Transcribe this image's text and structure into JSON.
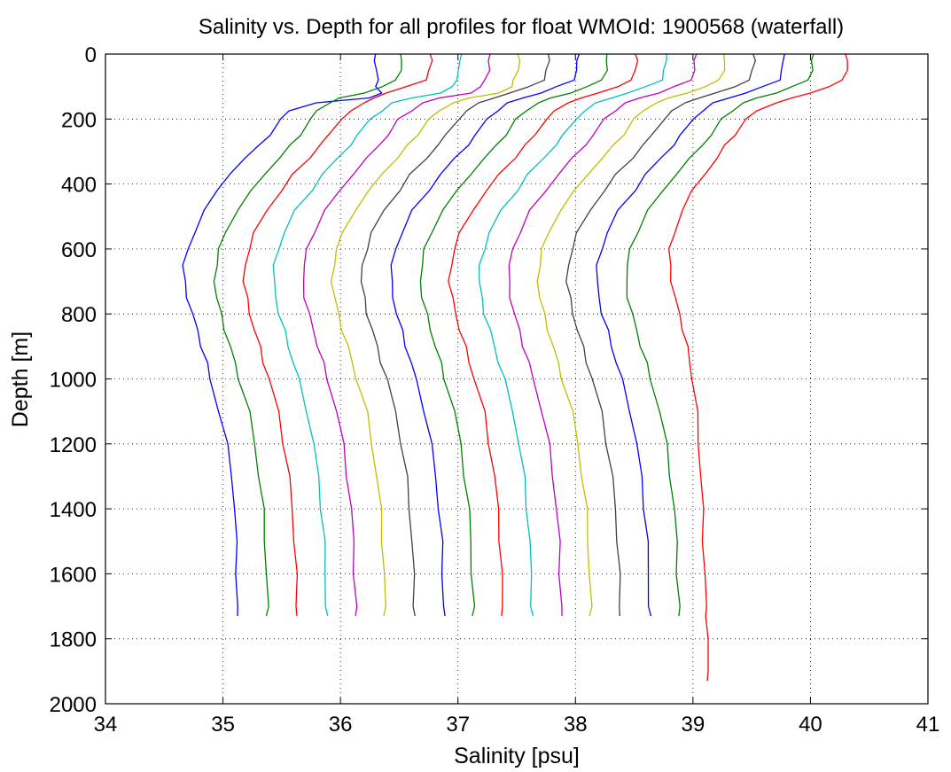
{
  "chart_data": {
    "type": "line",
    "title": "Salinity vs. Depth for all profiles for float WMOId: 1900568 (waterfall)",
    "xlabel": "Salinity [psu]",
    "ylabel": "Depth [m]",
    "xlim": [
      34,
      41
    ],
    "ylim": [
      0,
      2000
    ],
    "y_reversed": true,
    "grid": true,
    "grid_style": "dotted",
    "xticks": [
      34,
      35,
      36,
      37,
      38,
      39,
      40,
      41
    ],
    "yticks": [
      0,
      200,
      400,
      600,
      800,
      1000,
      1200,
      1400,
      1600,
      1800,
      2000
    ],
    "waterfall_offset": 0.25,
    "colors": [
      "#0000ff",
      "#008000",
      "#ff0000",
      "#00bfbf",
      "#bf00bf",
      "#bfbf00",
      "#404040"
    ],
    "depth_levels": [
      0,
      20,
      50,
      80,
      100,
      120,
      135,
      150,
      175,
      200,
      250,
      280,
      320,
      370,
      420,
      480,
      550,
      600,
      650,
      700,
      750,
      800,
      850,
      900,
      950,
      1000,
      1100,
      1200,
      1300,
      1400,
      1500,
      1600,
      1700,
      1730
    ],
    "series": [
      {
        "salinity": [
          36.29,
          36.3,
          36.3,
          36.32,
          36.31,
          36.34,
          36.25,
          35.8,
          35.55,
          35.5,
          35.4,
          35.3,
          35.2,
          35.05,
          34.95,
          34.85,
          34.75,
          34.71,
          34.66,
          34.67,
          34.7,
          34.74,
          34.78,
          34.82,
          34.86,
          34.89,
          34.97,
          35.03,
          35.08,
          35.1,
          35.11,
          35.12,
          35.12,
          35.12
        ]
      },
      {
        "salinity": [
          36.52,
          36.52,
          36.51,
          36.48,
          36.35,
          36.2,
          36.0,
          35.9,
          35.8,
          35.75,
          35.65,
          35.58,
          35.48,
          35.35,
          35.25,
          35.12,
          35.02,
          34.97,
          34.94,
          34.93,
          34.95,
          34.98,
          35.02,
          35.06,
          35.1,
          35.14,
          35.22,
          35.27,
          35.31,
          35.34,
          35.36,
          35.37,
          35.38,
          35.38
        ]
      },
      {
        "salinity": [
          36.77,
          36.77,
          36.76,
          36.73,
          36.55,
          36.4,
          36.28,
          36.2,
          36.1,
          36.0,
          35.9,
          35.83,
          35.73,
          35.6,
          35.5,
          35.37,
          35.27,
          35.22,
          35.19,
          35.18,
          35.2,
          35.23,
          35.27,
          35.31,
          35.35,
          35.39,
          35.47,
          35.52,
          35.56,
          35.59,
          35.61,
          35.62,
          35.63,
          35.63
        ]
      },
      {
        "salinity": [
          37.02,
          37.02,
          37.01,
          36.98,
          36.96,
          36.85,
          36.6,
          36.45,
          36.35,
          36.25,
          36.15,
          36.08,
          35.98,
          35.85,
          35.75,
          35.62,
          35.52,
          35.47,
          35.44,
          35.43,
          35.45,
          35.48,
          35.52,
          35.56,
          35.6,
          35.64,
          35.72,
          35.77,
          35.81,
          35.84,
          35.86,
          35.87,
          35.88,
          35.88
        ]
      },
      {
        "salinity": [
          37.27,
          37.27,
          37.26,
          37.23,
          37.2,
          37.1,
          36.85,
          36.7,
          36.6,
          36.5,
          36.4,
          36.33,
          36.23,
          36.1,
          36.0,
          35.87,
          35.77,
          35.72,
          35.69,
          35.68,
          35.7,
          35.73,
          35.77,
          35.81,
          35.85,
          35.89,
          35.97,
          36.02,
          36.06,
          36.09,
          36.11,
          36.12,
          36.13,
          36.13
        ]
      },
      {
        "salinity": [
          37.52,
          37.52,
          37.51,
          37.48,
          37.45,
          37.35,
          37.1,
          36.95,
          36.85,
          36.75,
          36.65,
          36.58,
          36.48,
          36.35,
          36.25,
          36.12,
          36.02,
          35.97,
          35.94,
          35.93,
          35.95,
          35.98,
          36.02,
          36.06,
          36.1,
          36.14,
          36.22,
          36.27,
          36.31,
          36.34,
          36.36,
          36.37,
          36.38,
          36.38
        ]
      },
      {
        "salinity": [
          37.77,
          37.77,
          37.76,
          37.73,
          37.6,
          37.45,
          37.3,
          37.18,
          37.08,
          37.0,
          36.9,
          36.83,
          36.73,
          36.6,
          36.5,
          36.37,
          36.27,
          36.22,
          36.19,
          36.18,
          36.2,
          36.23,
          36.27,
          36.31,
          36.35,
          36.39,
          36.47,
          36.52,
          36.56,
          36.59,
          36.61,
          36.62,
          36.63,
          36.63
        ]
      },
      {
        "salinity": [
          38.02,
          38.02,
          38.01,
          37.98,
          37.85,
          37.7,
          37.55,
          37.43,
          37.33,
          37.25,
          37.15,
          37.08,
          36.98,
          36.85,
          36.75,
          36.62,
          36.52,
          36.47,
          36.44,
          36.43,
          36.45,
          36.48,
          36.52,
          36.56,
          36.6,
          36.64,
          36.72,
          36.77,
          36.81,
          36.84,
          36.86,
          36.87,
          36.88,
          36.88
        ]
      },
      {
        "salinity": [
          38.27,
          38.27,
          38.26,
          38.23,
          38.1,
          37.95,
          37.8,
          37.68,
          37.58,
          37.5,
          37.4,
          37.33,
          37.23,
          37.1,
          37.0,
          36.87,
          36.77,
          36.72,
          36.69,
          36.68,
          36.7,
          36.73,
          36.77,
          36.81,
          36.85,
          36.89,
          36.97,
          37.02,
          37.06,
          37.09,
          37.11,
          37.12,
          37.13,
          37.13
        ]
      },
      {
        "salinity": [
          38.52,
          38.52,
          38.51,
          38.48,
          38.35,
          38.2,
          38.05,
          37.93,
          37.83,
          37.75,
          37.65,
          37.58,
          37.48,
          37.35,
          37.25,
          37.12,
          37.02,
          36.97,
          36.94,
          36.93,
          36.95,
          36.98,
          37.02,
          37.06,
          37.1,
          37.14,
          37.22,
          37.27,
          37.31,
          37.34,
          37.36,
          37.37,
          37.38,
          37.38
        ]
      },
      {
        "salinity": [
          38.77,
          38.77,
          38.76,
          38.73,
          38.6,
          38.45,
          38.3,
          38.18,
          38.08,
          38.0,
          37.9,
          37.83,
          37.73,
          37.6,
          37.5,
          37.37,
          37.27,
          37.22,
          37.19,
          37.18,
          37.2,
          37.23,
          37.27,
          37.31,
          37.35,
          37.39,
          37.47,
          37.52,
          37.56,
          37.59,
          37.61,
          37.62,
          37.63,
          37.63
        ]
      },
      {
        "salinity": [
          39.02,
          39.02,
          39.01,
          38.98,
          38.85,
          38.7,
          38.55,
          38.43,
          38.33,
          38.25,
          38.15,
          38.08,
          37.98,
          37.85,
          37.75,
          37.62,
          37.52,
          37.47,
          37.44,
          37.43,
          37.45,
          37.48,
          37.52,
          37.56,
          37.6,
          37.64,
          37.72,
          37.77,
          37.81,
          37.84,
          37.86,
          37.87,
          37.88,
          37.88
        ]
      },
      {
        "salinity": [
          39.27,
          39.27,
          39.26,
          39.23,
          39.1,
          38.95,
          38.8,
          38.68,
          38.58,
          38.5,
          38.4,
          38.33,
          38.23,
          38.1,
          38.0,
          37.87,
          37.77,
          37.72,
          37.69,
          37.68,
          37.7,
          37.73,
          37.77,
          37.81,
          37.85,
          37.89,
          37.97,
          38.02,
          38.06,
          38.09,
          38.11,
          38.12,
          38.13,
          38.13
        ]
      },
      {
        "salinity": [
          39.52,
          39.52,
          39.51,
          39.48,
          39.35,
          39.2,
          39.05,
          38.93,
          38.83,
          38.75,
          38.65,
          38.58,
          38.48,
          38.35,
          38.25,
          38.12,
          38.02,
          37.97,
          37.94,
          37.93,
          37.95,
          37.98,
          38.02,
          38.06,
          38.1,
          38.14,
          38.22,
          38.27,
          38.31,
          38.34,
          38.36,
          38.37,
          38.38,
          38.38
        ]
      },
      {
        "salinity": [
          39.77,
          39.77,
          39.76,
          39.73,
          39.6,
          39.45,
          39.3,
          39.18,
          39.08,
          39.0,
          38.9,
          38.83,
          38.73,
          38.6,
          38.5,
          38.37,
          38.27,
          38.22,
          38.19,
          38.18,
          38.2,
          38.23,
          38.27,
          38.31,
          38.35,
          38.39,
          38.47,
          38.52,
          38.56,
          38.59,
          38.61,
          38.62,
          38.63,
          38.63
        ]
      },
      {
        "salinity": [
          40.02,
          40.02,
          40.01,
          39.98,
          39.85,
          39.7,
          39.55,
          39.43,
          39.33,
          39.25,
          39.15,
          39.08,
          38.98,
          38.85,
          38.75,
          38.62,
          38.52,
          38.47,
          38.44,
          38.43,
          38.45,
          38.48,
          38.52,
          38.56,
          38.6,
          38.64,
          38.72,
          38.77,
          38.81,
          38.84,
          38.86,
          38.87,
          38.88,
          38.88
        ]
      },
      {
        "salinity": [
          40.31,
          40.31,
          40.31,
          40.28,
          40.15,
          40.0,
          39.85,
          39.7,
          39.55,
          39.45,
          39.35,
          39.28,
          39.2,
          39.1,
          39.0,
          38.9,
          38.85,
          38.8,
          38.8,
          38.82,
          38.85,
          38.88,
          38.92,
          38.95,
          38.97,
          39.0,
          39.03,
          39.05,
          39.07,
          39.08,
          39.09,
          39.1,
          39.11,
          39.12
        ],
        "extra_depth": [
          1800,
          1900,
          1930
        ],
        "extra_salinity": [
          39.12,
          39.13,
          39.13
        ]
      }
    ]
  }
}
